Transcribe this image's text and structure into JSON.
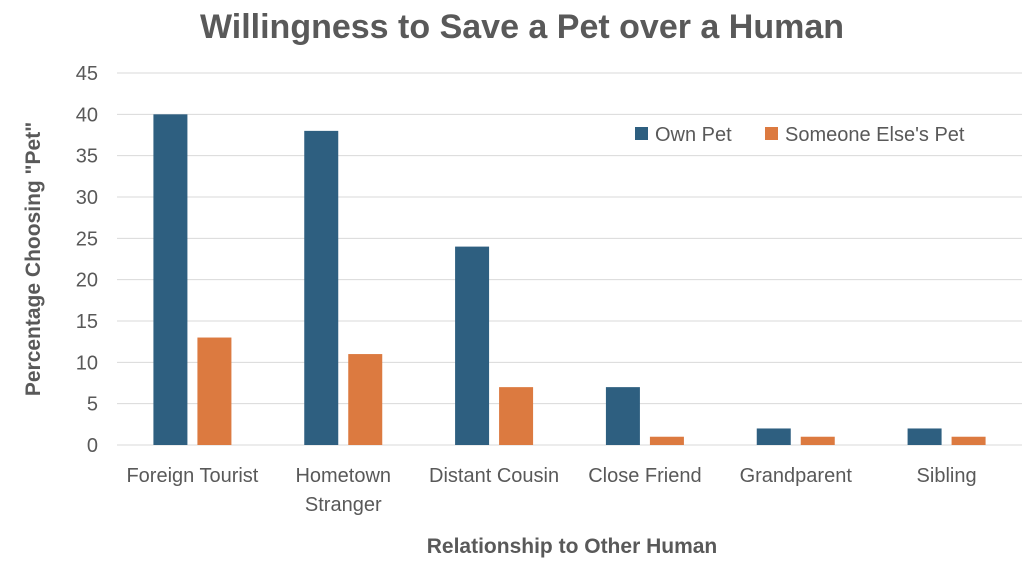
{
  "chart_data": {
    "type": "bar",
    "title": "Willingness to Save a Pet over a Human",
    "xlabel": "Relationship to Other Human",
    "ylabel": "Percentage Choosing \"Pet\"",
    "categories": [
      [
        "Foreign Tourist"
      ],
      [
        "Hometown",
        "Stranger"
      ],
      [
        "Distant Cousin"
      ],
      [
        "Close Friend"
      ],
      [
        "Grandparent"
      ],
      [
        "Sibling"
      ]
    ],
    "series": [
      {
        "name": "Own Pet",
        "color": "#2e5f80",
        "values": [
          40,
          38,
          24,
          7,
          2,
          2
        ]
      },
      {
        "name": "Someone Else's Pet",
        "color": "#dc7a40",
        "values": [
          13,
          11,
          7,
          1,
          1,
          1
        ]
      }
    ],
    "ylim": [
      0,
      45
    ],
    "yticks": [
      0,
      5,
      10,
      15,
      20,
      25,
      30,
      35,
      40,
      45
    ],
    "grid": true,
    "legend_position": "top-right"
  }
}
